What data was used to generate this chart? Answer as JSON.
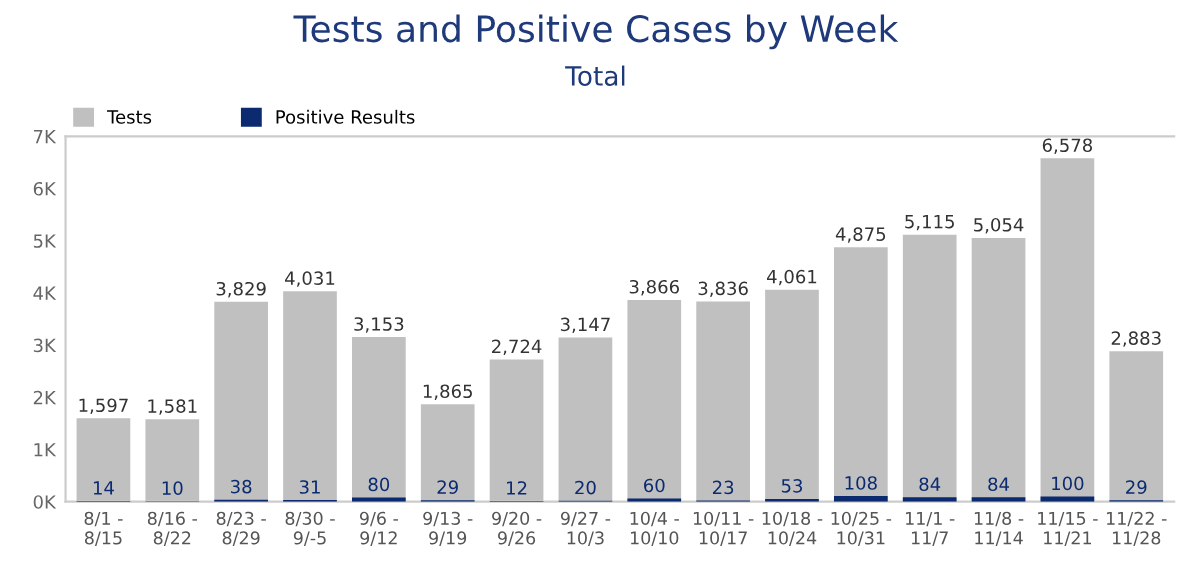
{
  "chart_data": {
    "type": "bar",
    "title": "Tests and Positive Cases by Week",
    "subtitle": "Total",
    "categories": [
      "8/1 -\n8/15",
      "8/16 -\n8/22",
      "8/23 -\n8/29",
      "8/30 -\n9/-5",
      "9/6 -\n9/12",
      "9/13 -\n9/19",
      "9/20 -\n9/26",
      "9/27 -\n10/3",
      "10/4 -\n10/10",
      "10/11 -\n10/17",
      "10/18 -\n10/24",
      "10/25 -\n10/31",
      "11/1 -\n11/7",
      "11/8 -\n11/14",
      "11/15 -\n11/21",
      "11/22 -\n11/28"
    ],
    "series": [
      {
        "name": "Tests",
        "color": "#c0c0c0",
        "values": [
          1597,
          1581,
          3829,
          4031,
          3153,
          1865,
          2724,
          3147,
          3866,
          3836,
          4061,
          4875,
          5115,
          5054,
          6578,
          2883
        ],
        "value_labels": [
          "1,597",
          "1,581",
          "3,829",
          "4,031",
          "3,153",
          "1,865",
          "2,724",
          "3,147",
          "3,866",
          "3,836",
          "4,061",
          "4,875",
          "5,115",
          "5,054",
          "6,578",
          "2,883"
        ]
      },
      {
        "name": "Positive Results",
        "color": "#0b2a6f",
        "values": [
          14,
          10,
          38,
          31,
          80,
          29,
          12,
          20,
          60,
          23,
          53,
          108,
          84,
          84,
          100,
          29
        ],
        "value_labels": [
          "14",
          "10",
          "38",
          "31",
          "80",
          "29",
          "12",
          "20",
          "60",
          "23",
          "53",
          "108",
          "84",
          "84",
          "100",
          "29"
        ]
      }
    ],
    "ylim": [
      0,
      7000
    ],
    "yticks": [
      {
        "value": 0,
        "label": "0K"
      },
      {
        "value": 1000,
        "label": "1K"
      },
      {
        "value": 2000,
        "label": "2K"
      },
      {
        "value": 3000,
        "label": "3K"
      },
      {
        "value": 4000,
        "label": "4K"
      },
      {
        "value": 5000,
        "label": "5K"
      },
      {
        "value": 6000,
        "label": "6K"
      },
      {
        "value": 7000,
        "label": "7K"
      }
    ],
    "legend": "top left",
    "grid": false
  }
}
